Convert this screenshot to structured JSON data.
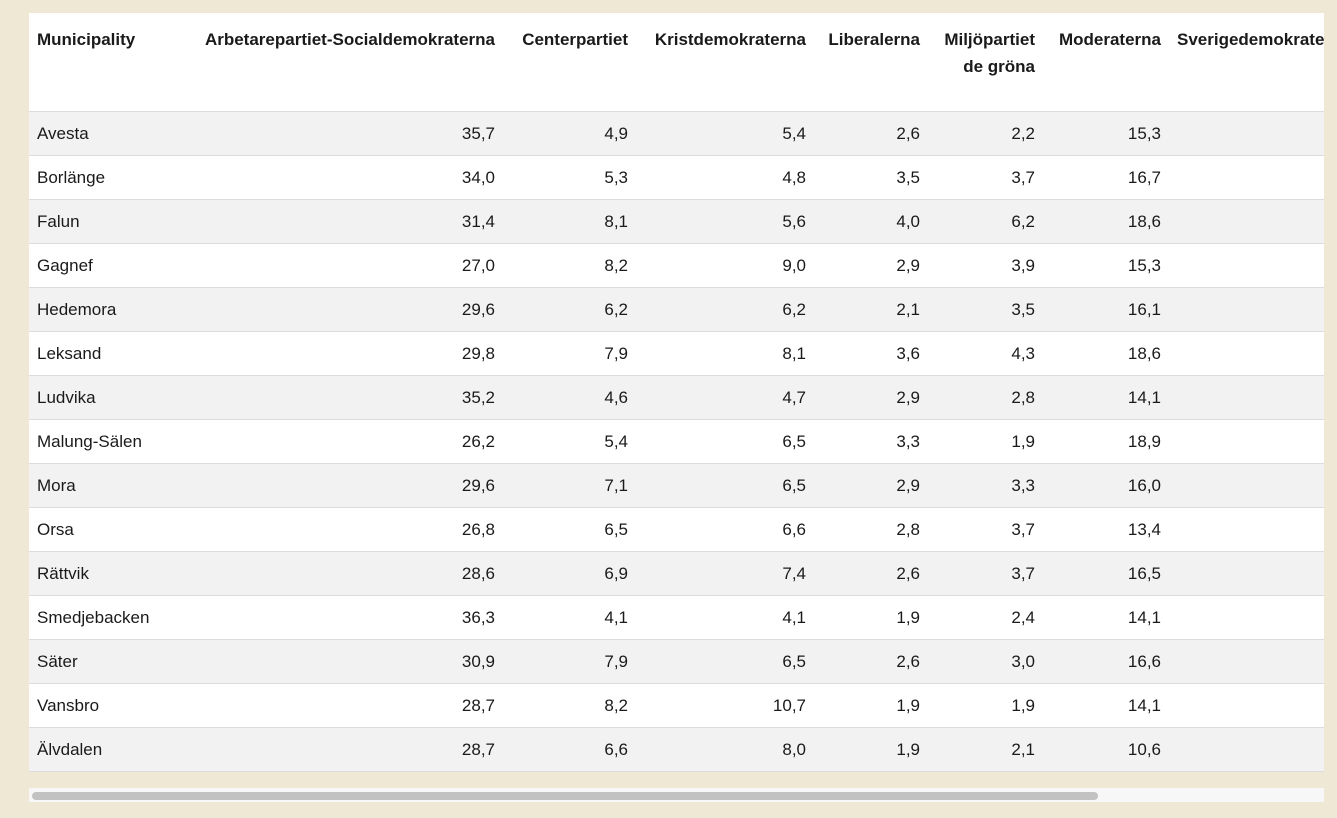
{
  "table": {
    "headers": [
      "Municipality",
      "Arbetarepartiet-Socialdemokraterna",
      "Centerpartiet",
      "Kristdemokraterna",
      "Liberalerna",
      "Miljöpartiet de gröna",
      "Moderaterna",
      "Sverigedemokraterna"
    ],
    "rows": [
      [
        "Avesta",
        "35,7",
        "4,9",
        "5,4",
        "2,6",
        "2,2",
        "15,3",
        ""
      ],
      [
        "Borlänge",
        "34,0",
        "5,3",
        "4,8",
        "3,5",
        "3,7",
        "16,7",
        ""
      ],
      [
        "Falun",
        "31,4",
        "8,1",
        "5,6",
        "4,0",
        "6,2",
        "18,6",
        ""
      ],
      [
        "Gagnef",
        "27,0",
        "8,2",
        "9,0",
        "2,9",
        "3,9",
        "15,3",
        ""
      ],
      [
        "Hedemora",
        "29,6",
        "6,2",
        "6,2",
        "2,1",
        "3,5",
        "16,1",
        ""
      ],
      [
        "Leksand",
        "29,8",
        "7,9",
        "8,1",
        "3,6",
        "4,3",
        "18,6",
        ""
      ],
      [
        "Ludvika",
        "35,2",
        "4,6",
        "4,7",
        "2,9",
        "2,8",
        "14,1",
        ""
      ],
      [
        "Malung-Sälen",
        "26,2",
        "5,4",
        "6,5",
        "3,3",
        "1,9",
        "18,9",
        ""
      ],
      [
        "Mora",
        "29,6",
        "7,1",
        "6,5",
        "2,9",
        "3,3",
        "16,0",
        ""
      ],
      [
        "Orsa",
        "26,8",
        "6,5",
        "6,6",
        "2,8",
        "3,7",
        "13,4",
        ""
      ],
      [
        "Rättvik",
        "28,6",
        "6,9",
        "7,4",
        "2,6",
        "3,7",
        "16,5",
        ""
      ],
      [
        "Smedjebacken",
        "36,3",
        "4,1",
        "4,1",
        "1,9",
        "2,4",
        "14,1",
        ""
      ],
      [
        "Säter",
        "30,9",
        "7,9",
        "6,5",
        "2,6",
        "3,0",
        "16,6",
        ""
      ],
      [
        "Vansbro",
        "28,7",
        "8,2",
        "10,7",
        "1,9",
        "1,9",
        "14,1",
        ""
      ],
      [
        "Älvdalen",
        "28,7",
        "6,6",
        "8,0",
        "1,9",
        "2,1",
        "10,6",
        ""
      ]
    ]
  },
  "colors": {
    "page_background": "#efe8d5",
    "row_stripe": "#f2f2f2",
    "scrollbar_thumb": "#c2c2c2"
  }
}
